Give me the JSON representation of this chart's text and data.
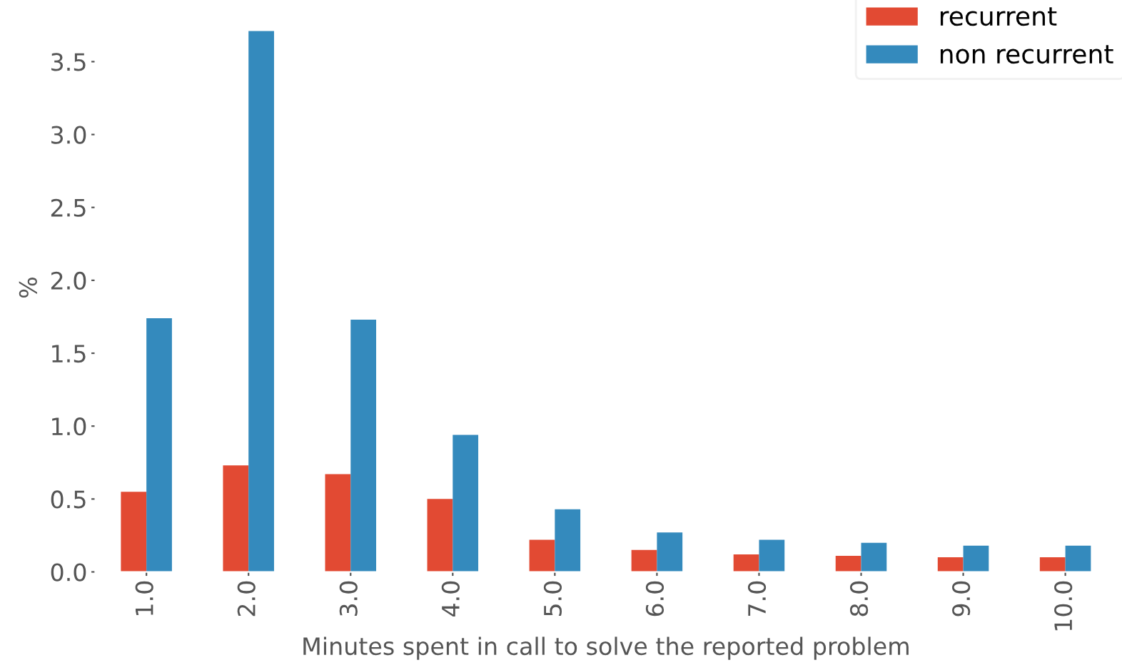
{
  "chart_data": {
    "type": "bar",
    "xlabel": "Minutes spent in call to solve the reported problem",
    "ylabel": "%",
    "categories": [
      "1.0",
      "2.0",
      "3.0",
      "4.0",
      "5.0",
      "6.0",
      "7.0",
      "8.0",
      "9.0",
      "10.0"
    ],
    "series": [
      {
        "name": "recurrent",
        "color": "#e24a33",
        "values": [
          0.55,
          0.73,
          0.67,
          0.5,
          0.22,
          0.15,
          0.12,
          0.11,
          0.1,
          0.1
        ]
      },
      {
        "name": "non recurrent",
        "color": "#348abd",
        "values": [
          1.74,
          3.71,
          1.73,
          0.94,
          0.43,
          0.27,
          0.22,
          0.2,
          0.18,
          0.18
        ]
      }
    ],
    "ylim": [
      0,
      3.9
    ],
    "yticks": [
      {
        "value": 0,
        "label": "0.0"
      },
      0.5,
      {
        "value": 1,
        "label": "1.0"
      },
      1.5,
      {
        "value": 2,
        "label": "2.0"
      },
      2.5,
      {
        "value": 3,
        "label": "3.0"
      },
      3.5
    ],
    "grid": false,
    "legend": "top right"
  }
}
